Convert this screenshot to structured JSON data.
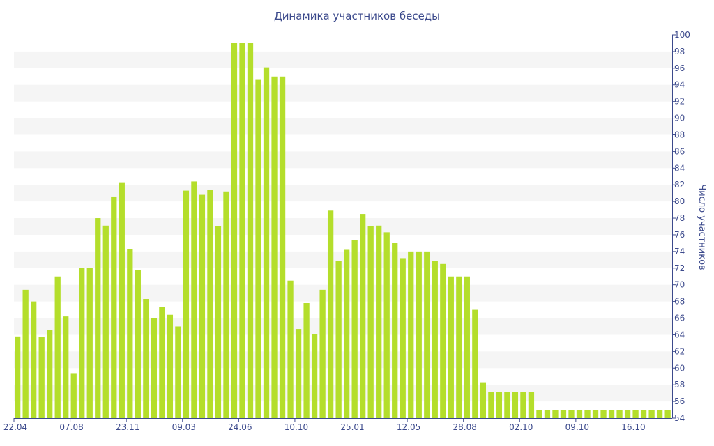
{
  "colors": {
    "bar": "#b4de2b",
    "band": "#f5f5f5",
    "text": "#3c4a8c",
    "axis": "#3c4a8c"
  },
  "chart_data": {
    "type": "bar",
    "title": "Динамика участников беседы",
    "ylabel": "Число участников",
    "y_axis_position": "right",
    "ylim": [
      54,
      100
    ],
    "yticks": [
      54,
      56,
      58,
      60,
      62,
      64,
      66,
      68,
      70,
      72,
      74,
      76,
      78,
      80,
      82,
      84,
      86,
      88,
      90,
      92,
      94,
      96,
      98,
      100
    ],
    "xtick_labels": [
      {
        "index": 0,
        "label": "22.04"
      },
      {
        "index": 7,
        "label": "07.08"
      },
      {
        "index": 14,
        "label": "23.11"
      },
      {
        "index": 21,
        "label": "09.03"
      },
      {
        "index": 28,
        "label": "24.06"
      },
      {
        "index": 35,
        "label": "10.10"
      },
      {
        "index": 42,
        "label": "25.01"
      },
      {
        "index": 49,
        "label": "12.05"
      },
      {
        "index": 56,
        "label": "28.08"
      },
      {
        "index": 63,
        "label": "02.10"
      },
      {
        "index": 70,
        "label": "09.10"
      },
      {
        "index": 77,
        "label": "16.10"
      }
    ],
    "values": [
      63.8,
      69.4,
      68.0,
      63.7,
      64.6,
      71.0,
      66.2,
      59.4,
      72.0,
      72.0,
      78.0,
      77.1,
      80.6,
      82.3,
      74.3,
      71.8,
      68.3,
      66.0,
      67.3,
      66.4,
      65.0,
      81.3,
      82.4,
      80.8,
      81.4,
      77.0,
      81.2,
      99.0,
      99.0,
      99.0,
      94.6,
      96.1,
      95.0,
      95.0,
      70.5,
      64.7,
      67.8,
      64.1,
      69.4,
      78.9,
      72.9,
      74.2,
      75.4,
      78.5,
      77.0,
      77.1,
      76.3,
      75.0,
      73.2,
      74.0,
      74.0,
      74.0,
      72.9,
      72.5,
      71.0,
      71.0,
      71.0,
      67.0,
      58.3,
      57.1,
      57.1,
      57.1,
      57.1,
      57.1,
      57.1,
      55.0,
      55.0,
      55.0,
      55.0,
      55.0,
      55.0,
      55.0,
      55.0,
      55.0,
      55.0,
      55.0,
      55.0,
      55.0,
      55.0,
      55.0,
      55.0,
      55.0
    ]
  }
}
